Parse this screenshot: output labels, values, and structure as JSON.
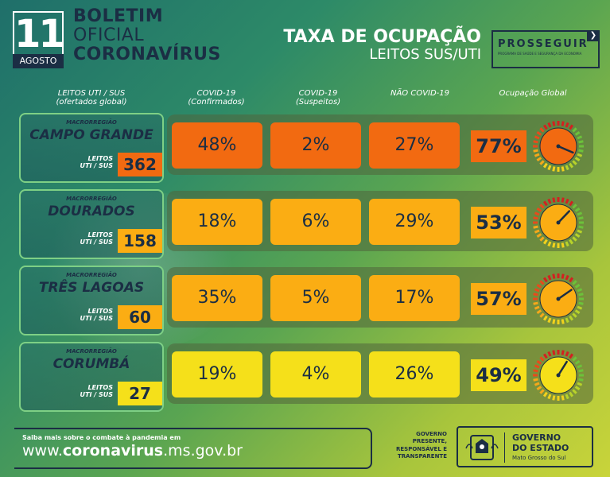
{
  "header": {
    "day": "11",
    "month": "AGOSTO",
    "boletim": [
      "BOLETIM",
      "OFICIAL",
      "CORONAVÍRUS"
    ],
    "taxa_title": "TAXA DE OCUPAÇÃO",
    "taxa_sub": "LEITOS SUS/UTI",
    "logo_name": "PROSSEGUIR",
    "logo_tag": "PROGRAMA DE SAÚDE E SEGURANÇA DA ECONOMIA"
  },
  "columns": {
    "leitos": "LEITOS UTI / SUS\n(ofertados global)",
    "confirmados": "COVID-19\n(Confirmados)",
    "suspeitos": "COVID-19\n(Suspeitos)",
    "nao_covid": "NÃO COVID-19",
    "global": "Ocupação Global"
  },
  "regions": [
    {
      "label_macro": "MACRORREGIÃO",
      "name": "CAMPO GRANDE",
      "leitos_label": "LEITOS\nUTI / SUS",
      "leitos": "362",
      "confirmados": "48%",
      "suspeitos": "2%",
      "nao_covid": "27%",
      "global": "77%",
      "global_value": 77,
      "color": "#f26a11"
    },
    {
      "label_macro": "MACRORREGIÃO",
      "name": "DOURADOS",
      "leitos_label": "LEITOS\nUTI / SUS",
      "leitos": "158",
      "confirmados": "18%",
      "suspeitos": "6%",
      "nao_covid": "29%",
      "global": "53%",
      "global_value": 53,
      "color": "#fbad13"
    },
    {
      "label_macro": "MACRORREGIÃO",
      "name": "TRÊS LAGOAS",
      "leitos_label": "LEITOS\nUTI / SUS",
      "leitos": "60",
      "confirmados": "35%",
      "suspeitos": "5%",
      "nao_covid": "17%",
      "global": "57%",
      "global_value": 57,
      "color": "#fbad13"
    },
    {
      "label_macro": "MACRORREGIÃO",
      "name": "CORUMBÁ",
      "leitos_label": "LEITOS\nUTI / SUS",
      "leitos": "27",
      "confirmados": "19%",
      "suspeitos": "4%",
      "nao_covid": "26%",
      "global": "49%",
      "global_value": 49,
      "color": "#f5e01a"
    }
  ],
  "footer": {
    "saiba": "Saiba mais sobre o combate à pandemia em",
    "url_pre": "www.",
    "url_bold": "coronavirus",
    "url_post": ".ms.gov.br",
    "gov_slogan": "GOVERNO\nPRESENTE,\nRESPONSÁVEL E\nTRANSPARENTE",
    "gov_name": "GOVERNO\nDO ESTADO",
    "gov_state": "Mato Grosso do Sul"
  }
}
